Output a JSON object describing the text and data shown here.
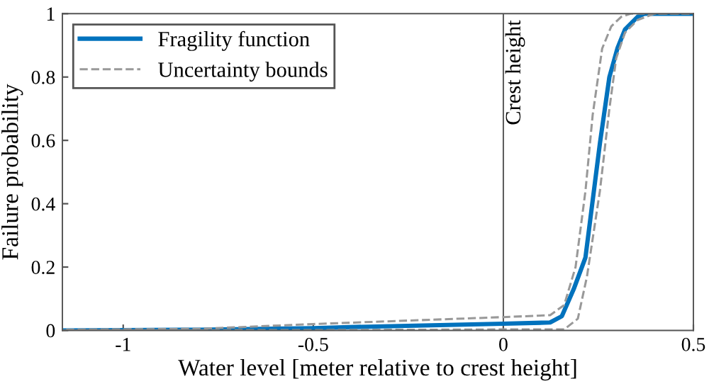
{
  "chart_data": {
    "type": "line",
    "xlabel": "Water level [meter relative to crest height]",
    "ylabel": "Failure probability",
    "xlim": [
      -1.16,
      0.5
    ],
    "ylim": [
      0,
      1
    ],
    "xticks": [
      -1,
      -0.5,
      0,
      0.5
    ],
    "yticks": [
      0,
      0.2,
      0.4,
      0.6,
      0.8,
      1
    ],
    "legend": "top left",
    "grid": false,
    "ref_lines": [
      {
        "axis": "x",
        "value": 0,
        "label": "Crest height",
        "color": "#555555"
      }
    ],
    "series": [
      {
        "name": "Fragility function",
        "color": "#0072bd",
        "line_style": "solid",
        "x": [
          -1.16,
          -0.8,
          -0.5,
          -0.42,
          0,
          0.123,
          0.154,
          0.185,
          0.216,
          0.254,
          0.279,
          0.3,
          0.32,
          0.353,
          0.372,
          0.5
        ],
        "values": [
          0,
          0.002,
          0.007,
          0.01,
          0.021,
          0.025,
          0.045,
          0.13,
          0.23,
          0.59,
          0.8,
          0.89,
          0.95,
          0.99,
          1,
          1
        ]
      },
      {
        "name": "Uncertainty bounds",
        "color": "#999999",
        "line_style": "dashed",
        "x": [
          -1.15,
          -0.8,
          -0.5,
          0,
          0.123,
          0.16,
          0.19,
          0.216,
          0.235,
          0.26,
          0.284,
          0.31,
          0.335,
          0.49
        ],
        "values": [
          0.002,
          0.005,
          0.02,
          0.042,
          0.048,
          0.08,
          0.2,
          0.44,
          0.68,
          0.89,
          0.96,
          0.99,
          1,
          1
        ]
      },
      {
        "color": "#999999",
        "line_style": "dashed",
        "x": [
          -1.16,
          -0.5,
          0,
          0.16,
          0.196,
          0.22,
          0.254,
          0.279,
          0.297,
          0.32,
          0.353,
          0.397,
          0.5
        ],
        "values": [
          0,
          0.001,
          0.003,
          0.003,
          0.037,
          0.17,
          0.44,
          0.7,
          0.86,
          0.94,
          0.98,
          1,
          1
        ]
      }
    ]
  }
}
